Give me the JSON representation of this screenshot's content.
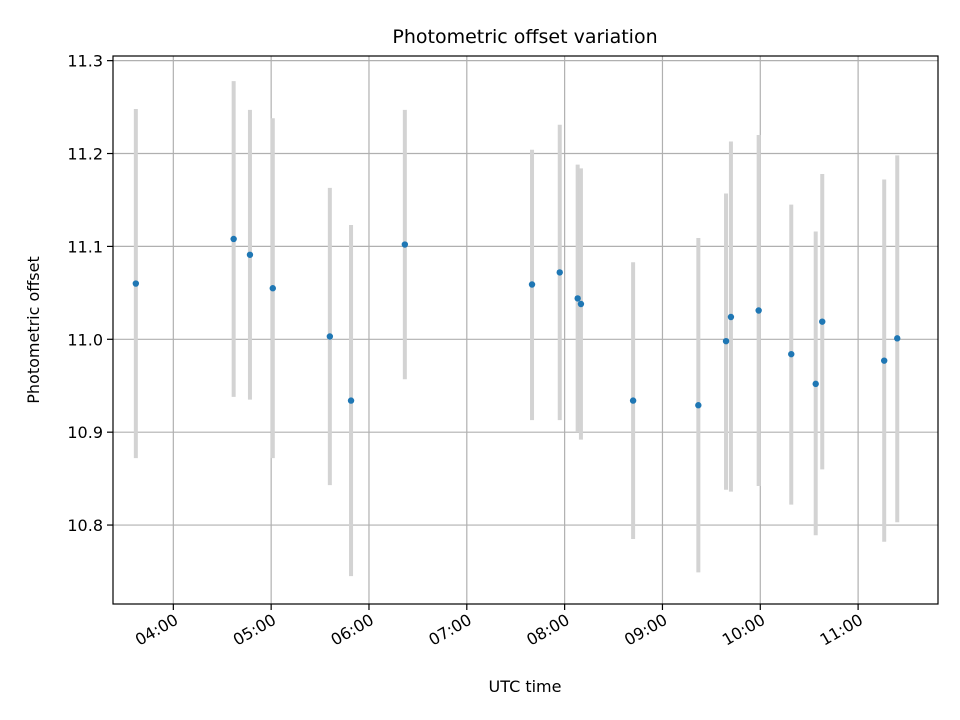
{
  "chart_data": {
    "type": "scatter",
    "title": "Photometric offset variation",
    "xlabel": "UTC time",
    "ylabel": "Photometric offset",
    "grid": true,
    "xlim": [
      "03:23",
      "11:49"
    ],
    "ylim": [
      10.715,
      11.305
    ],
    "x_ticks": [
      "04:00",
      "05:00",
      "06:00",
      "07:00",
      "08:00",
      "09:00",
      "10:00",
      "11:00"
    ],
    "y_ticks": [
      "10.8",
      "10.9",
      "11.0",
      "11.1",
      "11.2",
      "11.3"
    ],
    "colors": {
      "point": "#1f77b4",
      "errorbar": "#d3d3d3",
      "grid": "#b0b0b0",
      "axes": "#000000"
    },
    "points": [
      {
        "x": "03:37",
        "y": 11.06,
        "y_low": 10.872,
        "y_high": 11.248
      },
      {
        "x": "04:37",
        "y": 11.108,
        "y_low": 10.938,
        "y_high": 11.278
      },
      {
        "x": "04:47",
        "y": 11.091,
        "y_low": 10.935,
        "y_high": 11.247
      },
      {
        "x": "05:01",
        "y": 11.055,
        "y_low": 10.872,
        "y_high": 11.238
      },
      {
        "x": "05:36",
        "y": 11.003,
        "y_low": 10.843,
        "y_high": 11.163
      },
      {
        "x": "05:49",
        "y": 10.934,
        "y_low": 10.745,
        "y_high": 11.123
      },
      {
        "x": "06:22",
        "y": 11.102,
        "y_low": 10.957,
        "y_high": 11.247
      },
      {
        "x": "07:40",
        "y": 11.059,
        "y_low": 10.913,
        "y_high": 11.204
      },
      {
        "x": "07:57",
        "y": 11.072,
        "y_low": 10.913,
        "y_high": 11.231
      },
      {
        "x": "08:08",
        "y": 11.044,
        "y_low": 10.9,
        "y_high": 11.188
      },
      {
        "x": "08:10",
        "y": 11.038,
        "y_low": 10.892,
        "y_high": 11.184
      },
      {
        "x": "08:42",
        "y": 10.934,
        "y_low": 10.785,
        "y_high": 11.083
      },
      {
        "x": "09:22",
        "y": 10.929,
        "y_low": 10.749,
        "y_high": 11.109
      },
      {
        "x": "09:39",
        "y": 10.998,
        "y_low": 10.838,
        "y_high": 11.157
      },
      {
        "x": "09:42",
        "y": 11.024,
        "y_low": 10.836,
        "y_high": 11.213
      },
      {
        "x": "09:59",
        "y": 11.031,
        "y_low": 10.842,
        "y_high": 11.22
      },
      {
        "x": "10:19",
        "y": 10.984,
        "y_low": 10.822,
        "y_high": 11.145
      },
      {
        "x": "10:34",
        "y": 10.952,
        "y_low": 10.789,
        "y_high": 11.116
      },
      {
        "x": "10:38",
        "y": 11.019,
        "y_low": 10.86,
        "y_high": 11.178
      },
      {
        "x": "11:16",
        "y": 10.977,
        "y_low": 10.782,
        "y_high": 11.172
      },
      {
        "x": "11:24",
        "y": 11.001,
        "y_low": 10.803,
        "y_high": 11.198
      }
    ]
  }
}
